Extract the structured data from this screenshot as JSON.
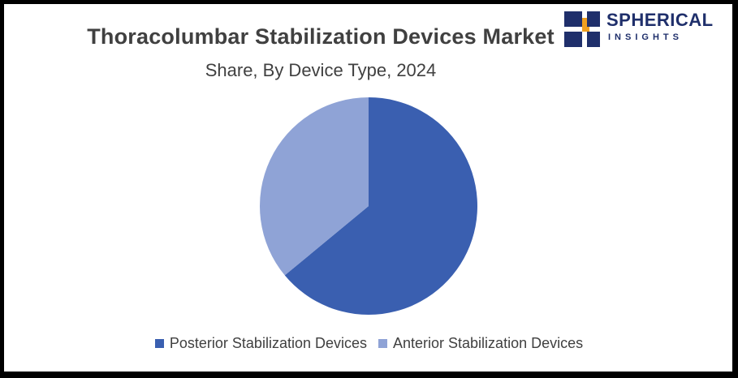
{
  "header": {
    "title": "Thoracolumbar Stabilization Devices Market",
    "subtitle": "Share, By Device Type, 2024"
  },
  "logo": {
    "brand": "SPHERICAL",
    "tagline": "INSIGHTS",
    "icon": "spherical-insights-logo-icon"
  },
  "chart_data": {
    "type": "pie",
    "title": "Thoracolumbar Stabilization Devices Market",
    "subtitle": "Share, By Device Type, 2024",
    "categories": [
      "Posterior Stabilization Devices",
      "Anterior Stabilization Devices"
    ],
    "values": [
      64,
      36
    ],
    "colors": [
      "#3a5fb0",
      "#8fa3d6"
    ],
    "legend_position": "bottom",
    "start_angle_deg": 0,
    "direction": "clockwise"
  }
}
